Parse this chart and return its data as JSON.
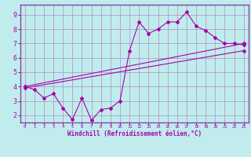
{
  "xlabel": "Windchill (Refroidissement éolien,°C)",
  "bg_color": "#c0ecee",
  "grid_color": "#b090b8",
  "line_color": "#aa00aa",
  "marker": "D",
  "markersize": 2,
  "linewidth": 0.8,
  "xlim": [
    -0.5,
    23.5
  ],
  "ylim": [
    1.5,
    9.7
  ],
  "xticks": [
    0,
    1,
    2,
    3,
    4,
    5,
    6,
    7,
    8,
    9,
    10,
    11,
    12,
    13,
    14,
    15,
    16,
    17,
    18,
    19,
    20,
    21,
    22,
    23
  ],
  "yticks": [
    2,
    3,
    4,
    5,
    6,
    7,
    8,
    9
  ],
  "line1_x": [
    0,
    1,
    2,
    3,
    4,
    5,
    6,
    7,
    8,
    9,
    10,
    11,
    12,
    13,
    14,
    15,
    16,
    17,
    18,
    19,
    20,
    21,
    22,
    23
  ],
  "line1_y": [
    4.0,
    3.8,
    3.2,
    3.5,
    2.5,
    1.7,
    3.2,
    1.65,
    2.4,
    2.5,
    3.0,
    6.5,
    8.5,
    7.7,
    8.0,
    8.5,
    8.5,
    9.2,
    8.2,
    7.9,
    7.4,
    7.0,
    7.0,
    6.9
  ],
  "line2_x": [
    0,
    23
  ],
  "line2_y": [
    4.0,
    7.0
  ],
  "line3_x": [
    0,
    23
  ],
  "line3_y": [
    3.9,
    6.5
  ],
  "spine_color": "#8844aa",
  "xlabel_fontsize": 5.5,
  "tick_fontsize": 5.0,
  "ytick_fontsize": 6.0
}
